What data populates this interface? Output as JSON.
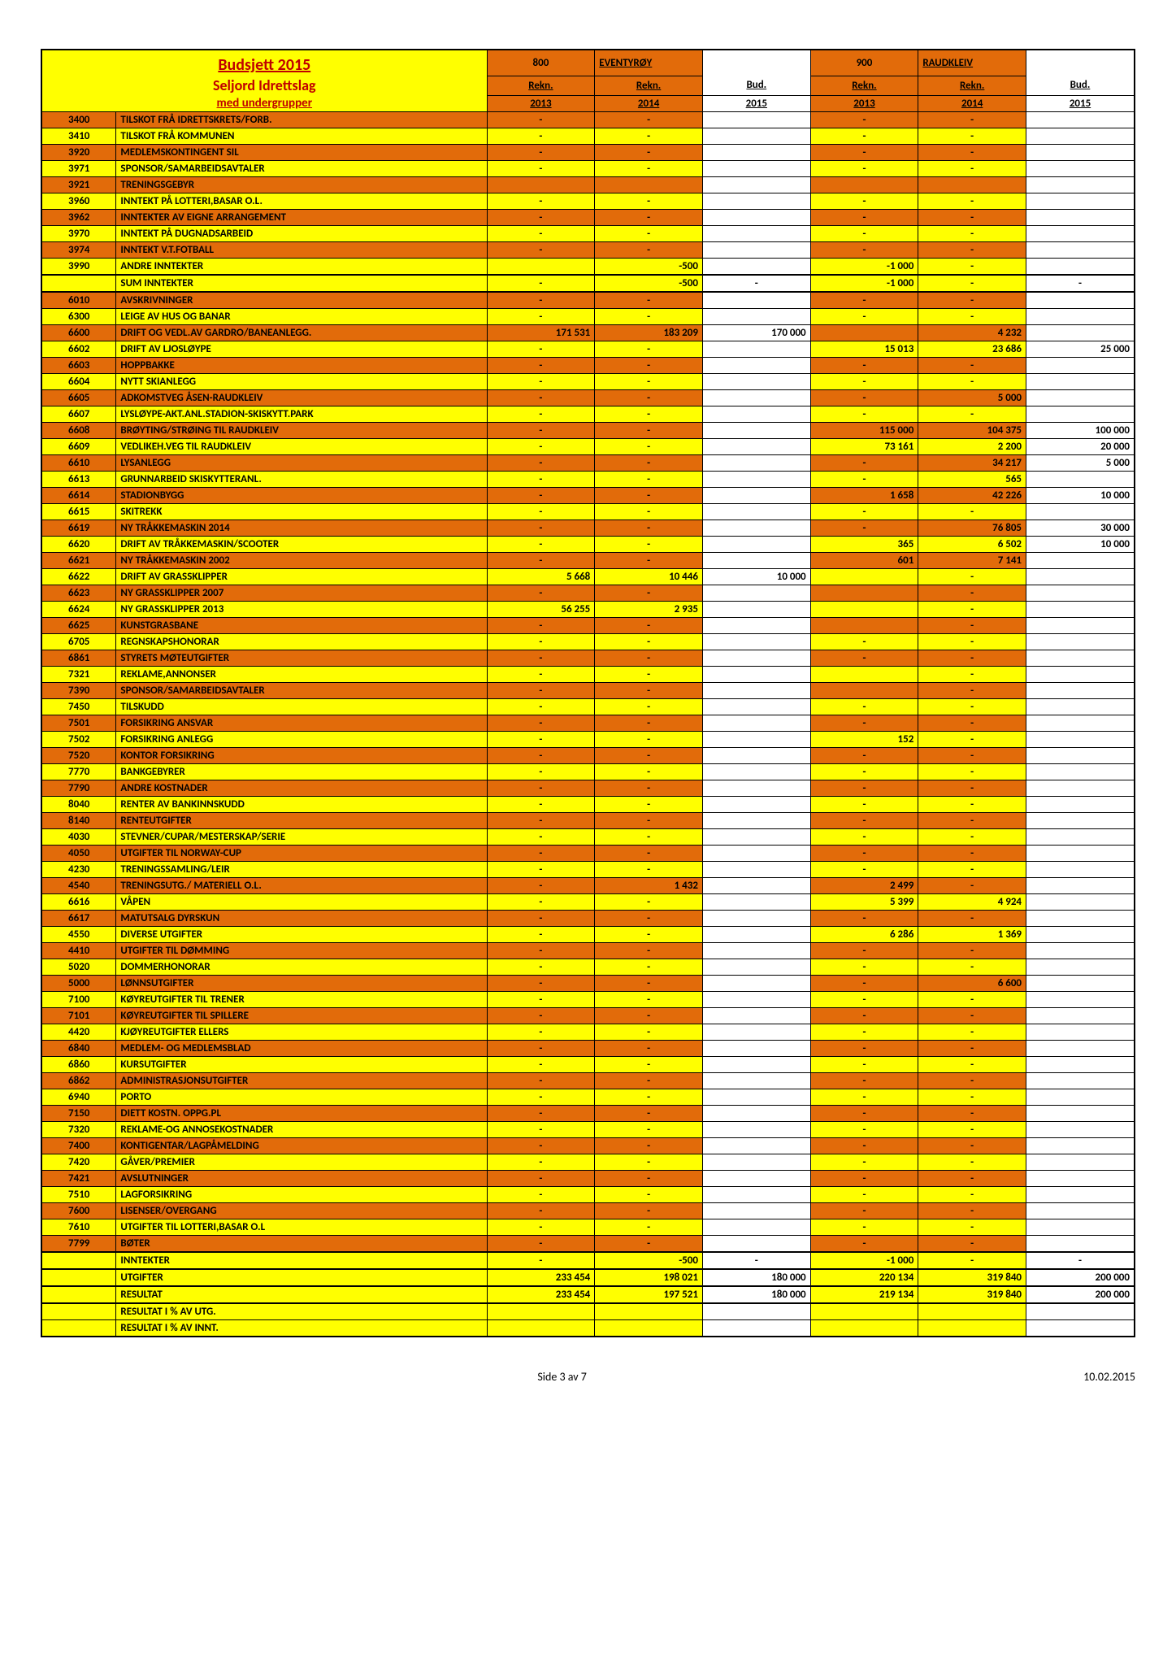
{
  "header": {
    "title": "Budsjett 2015",
    "subtitle1": "Seljord Idrettslag",
    "subtitle2": "med undergrupper",
    "group1_num": "800",
    "group1_name": "EVENTYRØY",
    "group2_num": "900",
    "group2_name": "RAUDKLEIV",
    "cols": [
      "Rekn.",
      "Rekn.",
      "Bud.",
      "Rekn.",
      "Rekn.",
      "Bud."
    ],
    "years": [
      "2013",
      "2014",
      "2015",
      "2013",
      "2014",
      "2015"
    ]
  },
  "rows": [
    {
      "c": "3400",
      "d": "TILSKOT FRÅ IDRETTSKRETS/FORB.",
      "cls": "o",
      "v": [
        "-",
        "-",
        "",
        "-",
        "-",
        ""
      ]
    },
    {
      "c": "3410",
      "d": "TILSKOT FRÅ KOMMUNEN",
      "cls": "y",
      "v": [
        "-",
        "-",
        "",
        "-",
        "-",
        ""
      ]
    },
    {
      "c": "3920",
      "d": "MEDLEMSKONTINGENT SIL",
      "cls": "o",
      "v": [
        "-",
        "-",
        "",
        "-",
        "-",
        ""
      ]
    },
    {
      "c": "3971",
      "d": "SPONSOR/SAMARBEIDSAVTALER",
      "cls": "y",
      "v": [
        "-",
        "-",
        "",
        "-",
        "-",
        ""
      ]
    },
    {
      "c": "3921",
      "d": "TRENINGSGEBYR",
      "cls": "o",
      "v": [
        "",
        "",
        "",
        "",
        "",
        ""
      ]
    },
    {
      "c": "3960",
      "d": "INNTEKT PÅ LOTTERI,BASAR O.L.",
      "cls": "y",
      "v": [
        "-",
        "-",
        "",
        "-",
        "-",
        ""
      ]
    },
    {
      "c": "3962",
      "d": "INNTEKTER AV EIGNE ARRANGEMENT",
      "cls": "o",
      "v": [
        "-",
        "-",
        "",
        "-",
        "-",
        ""
      ]
    },
    {
      "c": "3970",
      "d": "INNTEKT PÅ DUGNADSARBEID",
      "cls": "y",
      "v": [
        "-",
        "-",
        "",
        "-",
        "-",
        ""
      ]
    },
    {
      "c": "3974",
      "d": "INNTEKT V.T.FOTBALL",
      "cls": "o",
      "v": [
        "-",
        "-",
        "",
        "-",
        "-",
        ""
      ]
    },
    {
      "c": "3990",
      "d": "ANDRE INNTEKTER",
      "cls": "y",
      "v": [
        "",
        "-500",
        "",
        "-1 000",
        "-",
        ""
      ]
    },
    {
      "c": "",
      "d": "SUM INNTEKTER",
      "cls": "y",
      "sum": true,
      "v": [
        "-",
        "-500",
        "-",
        "-1 000",
        "-",
        "-"
      ]
    },
    {
      "c": "6010",
      "d": "AVSKRIVNINGER",
      "cls": "o",
      "v": [
        "-",
        "-",
        "",
        "-",
        "-",
        ""
      ]
    },
    {
      "c": "6300",
      "d": "LEIGE AV HUS OG BANAR",
      "cls": "y",
      "v": [
        "-",
        "-",
        "",
        "-",
        "-",
        ""
      ]
    },
    {
      "c": "6600",
      "d": "DRIFT OG VEDL.AV GARDRO/BANEANLEGG.",
      "cls": "o",
      "v": [
        "171 531",
        "183 209",
        "170 000",
        "",
        "4 232",
        ""
      ]
    },
    {
      "c": "6602",
      "d": "DRIFT AV LJOSLØYPE",
      "cls": "y",
      "v": [
        "-",
        "-",
        "",
        "15 013",
        "23 686",
        "25 000"
      ]
    },
    {
      "c": "6603",
      "d": "HOPPBAKKE",
      "cls": "o",
      "v": [
        "-",
        "-",
        "",
        "-",
        "-",
        ""
      ]
    },
    {
      "c": "6604",
      "d": "NYTT SKIANLEGG",
      "cls": "y",
      "v": [
        "-",
        "-",
        "",
        "-",
        "-",
        ""
      ]
    },
    {
      "c": "6605",
      "d": "ADKOMSTVEG ÅSEN-RAUDKLEIV",
      "cls": "o",
      "v": [
        "-",
        "-",
        "",
        "-",
        "5 000",
        ""
      ]
    },
    {
      "c": "6607",
      "d": "LYSLØYPE-AKT.ANL.STADION-SKISKYTT.PARK",
      "cls": "y",
      "v": [
        "-",
        "-",
        "",
        "-",
        "-",
        ""
      ]
    },
    {
      "c": "6608",
      "d": "BRØYTING/STRØING TIL RAUDKLEIV",
      "cls": "o",
      "v": [
        "-",
        "-",
        "",
        "115 000",
        "104 375",
        "100 000"
      ]
    },
    {
      "c": "6609",
      "d": "VEDLIKEH.VEG TIL RAUDKLEIV",
      "cls": "y",
      "v": [
        "-",
        "-",
        "",
        "73 161",
        "2 200",
        "20 000"
      ]
    },
    {
      "c": "6610",
      "d": "LYSANLEGG",
      "cls": "o",
      "v": [
        "-",
        "-",
        "",
        "-",
        "34 217",
        "5 000"
      ]
    },
    {
      "c": "6613",
      "d": "GRUNNARBEID SKISKYTTERANL.",
      "cls": "y",
      "v": [
        "-",
        "-",
        "",
        "-",
        "565",
        ""
      ]
    },
    {
      "c": "6614",
      "d": "STADIONBYGG",
      "cls": "o",
      "v": [
        "-",
        "-",
        "",
        "1 658",
        "42 226",
        "10 000"
      ]
    },
    {
      "c": "6615",
      "d": "SKITREKK",
      "cls": "y",
      "v": [
        "-",
        "-",
        "",
        "-",
        "-",
        ""
      ]
    },
    {
      "c": "6619",
      "d": "NY TRÅKKEMASKIN 2014",
      "cls": "o",
      "v": [
        "-",
        "-",
        "",
        "-",
        "76 805",
        "30 000"
      ]
    },
    {
      "c": "6620",
      "d": "DRIFT AV TRÅKKEMASKIN/SCOOTER",
      "cls": "y",
      "v": [
        "-",
        "-",
        "",
        "365",
        "6 502",
        "10 000"
      ]
    },
    {
      "c": "6621",
      "d": "NY TRÅKKEMASKIN 2002",
      "cls": "o",
      "v": [
        "-",
        "-",
        "",
        "601",
        "7 141",
        ""
      ]
    },
    {
      "c": "6622",
      "d": "DRIFT AV GRASSKLIPPER",
      "cls": "y",
      "v": [
        "5 668",
        "10 446",
        "10 000",
        "",
        "-",
        ""
      ]
    },
    {
      "c": "6623",
      "d": "NY GRASSKLIPPER 2007",
      "cls": "o",
      "v": [
        "-",
        "-",
        "",
        "",
        "-",
        ""
      ]
    },
    {
      "c": "6624",
      "d": "NY GRASSKLIPPER 2013",
      "cls": "y",
      "v": [
        "56 255",
        "2 935",
        "",
        "",
        "-",
        ""
      ]
    },
    {
      "c": "6625",
      "d": "KUNSTGRASBANE",
      "cls": "o",
      "v": [
        "-",
        "-",
        "",
        "",
        "-",
        ""
      ]
    },
    {
      "c": "6705",
      "d": "REGNSKAPSHONORAR",
      "cls": "y",
      "v": [
        "-",
        "-",
        "",
        "-",
        "-",
        ""
      ]
    },
    {
      "c": "6861",
      "d": "STYRETS MØTEUTGIFTER",
      "cls": "o",
      "v": [
        "-",
        "-",
        "",
        "-",
        "-",
        ""
      ]
    },
    {
      "c": "7321",
      "d": "REKLAME,ANNONSER",
      "cls": "y",
      "v": [
        "-",
        "-",
        "",
        "",
        "-",
        ""
      ]
    },
    {
      "c": "7390",
      "d": "SPONSOR/SAMARBEIDSAVTALER",
      "cls": "o",
      "v": [
        "-",
        "-",
        "",
        "",
        "-",
        ""
      ]
    },
    {
      "c": "7450",
      "d": "TILSKUDD",
      "cls": "y",
      "v": [
        "-",
        "-",
        "",
        "-",
        "-",
        ""
      ]
    },
    {
      "c": "7501",
      "d": "FORSIKRING ANSVAR",
      "cls": "o",
      "v": [
        "-",
        "-",
        "",
        "-",
        "-",
        ""
      ]
    },
    {
      "c": "7502",
      "d": "FORSIKRING ANLEGG",
      "cls": "y",
      "v": [
        "-",
        "-",
        "",
        "152",
        "-",
        ""
      ]
    },
    {
      "c": "7520",
      "d": "KONTOR FORSIKRING",
      "cls": "o",
      "v": [
        "-",
        "-",
        "",
        "-",
        "-",
        ""
      ]
    },
    {
      "c": "7770",
      "d": "BANKGEBYRER",
      "cls": "y",
      "v": [
        "-",
        "-",
        "",
        "-",
        "-",
        ""
      ]
    },
    {
      "c": "7790",
      "d": "ANDRE KOSTNADER",
      "cls": "o",
      "v": [
        "-",
        "-",
        "",
        "-",
        "-",
        ""
      ]
    },
    {
      "c": "8040",
      "d": "RENTER AV BANKINNSKUDD",
      "cls": "y",
      "v": [
        "-",
        "-",
        "",
        "-",
        "-",
        ""
      ]
    },
    {
      "c": "8140",
      "d": "RENTEUTGIFTER",
      "cls": "o",
      "v": [
        "-",
        "-",
        "",
        "-",
        "-",
        ""
      ]
    },
    {
      "c": "4030",
      "d": "STEVNER/CUPAR/MESTERSKAP/SERIE",
      "cls": "y",
      "v": [
        "-",
        "-",
        "",
        "-",
        "-",
        ""
      ]
    },
    {
      "c": "4050",
      "d": "UTGIFTER TIL NORWAY-CUP",
      "cls": "o",
      "v": [
        "-",
        "-",
        "",
        "-",
        "-",
        ""
      ]
    },
    {
      "c": "4230",
      "d": "TRENINGSSAMLING/LEIR",
      "cls": "y",
      "v": [
        "-",
        "-",
        "",
        "-",
        "-",
        ""
      ]
    },
    {
      "c": "4540",
      "d": "TRENINGSUTG./ MATERIELL O.L.",
      "cls": "o",
      "v": [
        "-",
        "1 432",
        "",
        "2 499",
        "-",
        ""
      ]
    },
    {
      "c": "6616",
      "d": "VÅPEN",
      "cls": "y",
      "v": [
        "-",
        "-",
        "",
        "5 399",
        "4 924",
        ""
      ]
    },
    {
      "c": "6617",
      "d": "MATUTSALG DYRSKUN",
      "cls": "o",
      "v": [
        "-",
        "-",
        "",
        "-",
        "-",
        ""
      ]
    },
    {
      "c": "4550",
      "d": "DIVERSE UTGIFTER",
      "cls": "y",
      "v": [
        "-",
        "-",
        "",
        "6 286",
        "1 369",
        ""
      ]
    },
    {
      "c": "4410",
      "d": "UTGIFTER TIL DØMMING",
      "cls": "o",
      "v": [
        "-",
        "-",
        "",
        "-",
        "-",
        ""
      ]
    },
    {
      "c": "5020",
      "d": "DOMMERHONORAR",
      "cls": "y",
      "v": [
        "-",
        "-",
        "",
        "-",
        "-",
        ""
      ]
    },
    {
      "c": "5000",
      "d": "LØNNSUTGIFTER",
      "cls": "o",
      "v": [
        "-",
        "-",
        "",
        "-",
        "6 600",
        ""
      ]
    },
    {
      "c": "7100",
      "d": "KØYREUTGIFTER TIL TRENER",
      "cls": "y",
      "v": [
        "-",
        "-",
        "",
        "-",
        "-",
        ""
      ]
    },
    {
      "c": "7101",
      "d": "KØYREUTGIFTER TIL SPILLERE",
      "cls": "o",
      "v": [
        "-",
        "-",
        "",
        "-",
        "-",
        ""
      ]
    },
    {
      "c": "4420",
      "d": "KJØYREUTGIFTER ELLERS",
      "cls": "y",
      "v": [
        "-",
        "-",
        "",
        "-",
        "-",
        ""
      ]
    },
    {
      "c": "6840",
      "d": "MEDLEM- OG MEDLEMSBLAD",
      "cls": "o",
      "v": [
        "-",
        "-",
        "",
        "-",
        "-",
        ""
      ]
    },
    {
      "c": "6860",
      "d": "KURSUTGIFTER",
      "cls": "y",
      "v": [
        "-",
        "-",
        "",
        "-",
        "-",
        ""
      ]
    },
    {
      "c": "6862",
      "d": "ADMINISTRASJONSUTGIFTER",
      "cls": "o",
      "v": [
        "-",
        "-",
        "",
        "-",
        "-",
        ""
      ]
    },
    {
      "c": "6940",
      "d": "PORTO",
      "cls": "y",
      "v": [
        "-",
        "-",
        "",
        "-",
        "-",
        ""
      ]
    },
    {
      "c": "7150",
      "d": "DIETT KOSTN. OPPG.PL",
      "cls": "o",
      "v": [
        "-",
        "-",
        "",
        "-",
        "-",
        ""
      ]
    },
    {
      "c": "7320",
      "d": "REKLAME-OG ANNOSEKOSTNADER",
      "cls": "y",
      "v": [
        "-",
        "-",
        "",
        "-",
        "-",
        ""
      ]
    },
    {
      "c": "7400",
      "d": "KONTIGENTAR/LAGPÅMELDING",
      "cls": "o",
      "v": [
        "-",
        "-",
        "",
        "-",
        "-",
        ""
      ]
    },
    {
      "c": "7420",
      "d": "GÅVER/PREMIER",
      "cls": "y",
      "v": [
        "-",
        "-",
        "",
        "-",
        "-",
        ""
      ]
    },
    {
      "c": "7421",
      "d": "AVSLUTNINGER",
      "cls": "o",
      "v": [
        "-",
        "-",
        "",
        "-",
        "-",
        ""
      ]
    },
    {
      "c": "7510",
      "d": "LAGFORSIKRING",
      "cls": "y",
      "v": [
        "-",
        "-",
        "",
        "-",
        "-",
        ""
      ]
    },
    {
      "c": "7600",
      "d": "LISENSER/OVERGANG",
      "cls": "o",
      "v": [
        "-",
        "-",
        "",
        "-",
        "-",
        ""
      ]
    },
    {
      "c": "7610",
      "d": "UTGIFTER TIL LOTTERI,BASAR O.L",
      "cls": "y",
      "v": [
        "-",
        "-",
        "",
        "-",
        "-",
        ""
      ]
    },
    {
      "c": "7799",
      "d": "BØTER",
      "cls": "o",
      "v": [
        "-",
        "-",
        "",
        "-",
        "-",
        ""
      ]
    },
    {
      "c": "",
      "d": "INNTEKTER",
      "cls": "y",
      "sum": true,
      "v": [
        "-",
        "-500",
        "-",
        "-1 000",
        "-",
        "-"
      ]
    },
    {
      "c": "",
      "d": "UTGIFTER",
      "cls": "y",
      "sum": true,
      "v": [
        "233 454",
        "198 021",
        "180 000",
        "220 134",
        "319 840",
        "200 000"
      ]
    },
    {
      "c": "",
      "d": "RESULTAT",
      "cls": "y",
      "sum": true,
      "v": [
        "233 454",
        "197 521",
        "180 000",
        "219 134",
        "319 840",
        "200 000"
      ]
    },
    {
      "c": "",
      "d": "RESULTAT I % AV UTG.",
      "cls": "y",
      "v": [
        "",
        "",
        "",
        "",
        "",
        ""
      ]
    },
    {
      "c": "",
      "d": "RESULTAT I % AV INNT.",
      "cls": "y",
      "v": [
        "",
        "",
        "",
        "",
        "",
        ""
      ]
    }
  ],
  "footer": {
    "left": "Side 3 av 7",
    "right": "10.02.2015"
  }
}
